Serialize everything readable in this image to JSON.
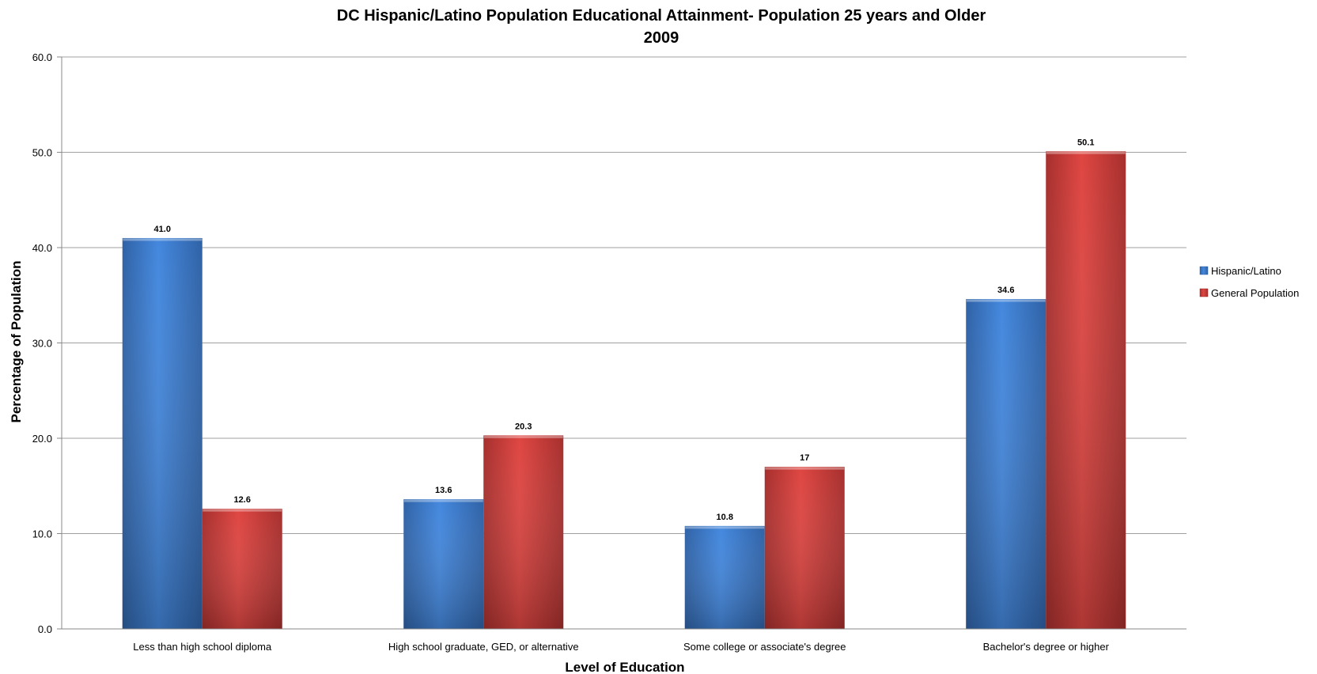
{
  "chart_data": {
    "type": "bar",
    "title": "DC Hispanic/Latino Population Educational Attainment- Population 25 years and Older",
    "subtitle": "2009",
    "xlabel": "Level of Education",
    "ylabel": "Percentage of Population",
    "ylim": [
      0,
      60
    ],
    "yticks": [
      "0.0",
      "10.0",
      "20.0",
      "30.0",
      "40.0",
      "50.0",
      "60.0"
    ],
    "grid": true,
    "legend_position": "right",
    "categories": [
      "Less than high school diploma",
      "High school graduate, GED, or alternative",
      "Some college or associate's degree",
      "Bachelor's degree or higher"
    ],
    "series": [
      {
        "name": "Hispanic/Latino",
        "color": "#3a79c9",
        "values": [
          41.0,
          13.6,
          10.8,
          34.6
        ],
        "labels": [
          "41.0",
          "13.6",
          "10.8",
          "34.6"
        ]
      },
      {
        "name": "General Population",
        "color": "#c93a38",
        "values": [
          12.6,
          20.3,
          17,
          50.1
        ],
        "labels": [
          "12.6",
          "20.3",
          "17",
          "50.1"
        ]
      }
    ]
  }
}
